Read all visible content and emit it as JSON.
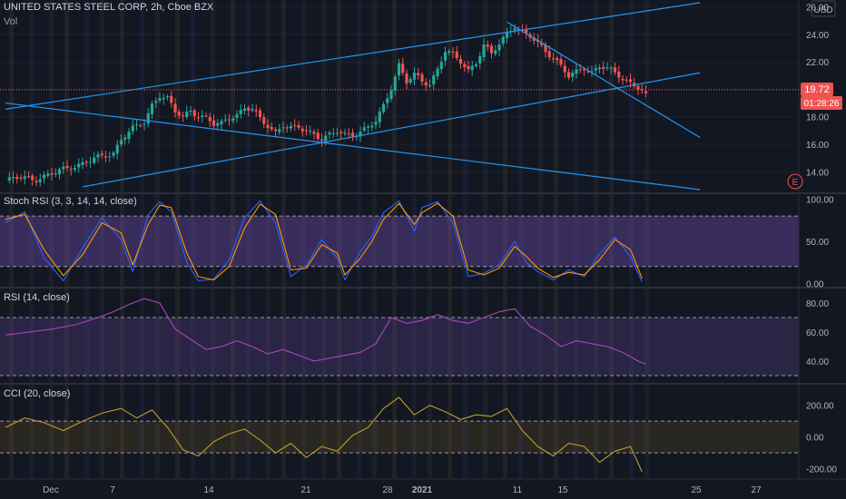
{
  "header": {
    "title": "UNITED STATES STEEL CORP, 2h, Cboe BZX",
    "volume_label": "Vol"
  },
  "price_axis": {
    "currency": "USD",
    "ticks": [
      "26.00",
      "24.00",
      "22.00",
      "20.00",
      "18.00",
      "16.00",
      "14.00"
    ],
    "last_price": "19.72",
    "countdown": "01:28:26",
    "event_badge": "E"
  },
  "x_axis": {
    "ticks": [
      "Dec",
      "7",
      "14",
      "21",
      "28",
      "2021",
      "11",
      "15",
      "25",
      "27"
    ]
  },
  "colors": {
    "background": "#131722",
    "up": "#26a69a",
    "down": "#ef5350",
    "trendline": "#2196f3",
    "stoch_k": "#2962ff",
    "stoch_d": "#ff9800",
    "band_fill": "#7e57c2",
    "cci_line": "#c49a2c",
    "price_label_bg": "#ef5350"
  },
  "chart_data": [
    {
      "type": "candlestick",
      "title": "UNITED STATES STEEL CORP, 2h, Cboe BZX",
      "unit": "USD",
      "y_ticks": [
        14,
        16,
        18,
        20,
        22,
        24,
        26
      ],
      "ylim": [
        12.5,
        26.5
      ],
      "x_ticks": [
        "Dec",
        "7",
        "14",
        "21",
        "28",
        "2021",
        "11",
        "15",
        "25",
        "27"
      ],
      "last_price": 19.72,
      "close_path": [
        [
          0,
          13.3
        ],
        [
          4,
          13.6
        ],
        [
          8,
          13.5
        ],
        [
          12,
          13.8
        ],
        [
          16,
          14.3
        ],
        [
          20,
          14.6
        ],
        [
          24,
          15.0
        ],
        [
          28,
          15.4
        ],
        [
          30,
          16.4
        ],
        [
          33,
          17.1
        ],
        [
          36,
          17.6
        ],
        [
          38,
          18.9
        ],
        [
          40,
          19.6
        ],
        [
          42,
          19.3
        ],
        [
          44,
          18.3
        ],
        [
          46,
          18.0
        ],
        [
          48,
          18.5
        ],
        [
          50,
          18.1
        ],
        [
          52,
          17.9
        ],
        [
          54,
          17.4
        ],
        [
          56,
          17.5
        ],
        [
          58,
          18.0
        ],
        [
          60,
          18.2
        ],
        [
          62,
          18.6
        ],
        [
          64,
          18.5
        ],
        [
          66,
          17.8
        ],
        [
          68,
          17.4
        ],
        [
          70,
          16.9
        ],
        [
          72,
          17.4
        ],
        [
          74,
          17.1
        ],
        [
          76,
          17.2
        ],
        [
          78,
          17.0
        ],
        [
          80,
          16.8
        ],
        [
          82,
          16.4
        ],
        [
          84,
          16.6
        ],
        [
          86,
          16.9
        ],
        [
          88,
          16.7
        ],
        [
          90,
          16.8
        ],
        [
          92,
          16.9
        ],
        [
          94,
          17.2
        ],
        [
          96,
          17.6
        ],
        [
          98,
          18.8
        ],
        [
          100,
          20.2
        ],
        [
          102,
          21.8
        ],
        [
          104,
          20.5
        ],
        [
          106,
          21.0
        ],
        [
          108,
          20.6
        ],
        [
          110,
          20.4
        ],
        [
          112,
          21.5
        ],
        [
          114,
          22.8
        ],
        [
          116,
          22.4
        ],
        [
          118,
          22.0
        ],
        [
          120,
          21.4
        ],
        [
          122,
          22.0
        ],
        [
          124,
          23.2
        ],
        [
          126,
          22.5
        ],
        [
          128,
          23.3
        ],
        [
          130,
          24.1
        ],
        [
          132,
          24.7
        ],
        [
          134,
          24.1
        ],
        [
          136,
          23.8
        ],
        [
          138,
          23.3
        ],
        [
          140,
          22.8
        ],
        [
          142,
          22.4
        ],
        [
          144,
          21.7
        ],
        [
          146,
          20.9
        ],
        [
          148,
          21.2
        ],
        [
          150,
          21.6
        ],
        [
          152,
          21.3
        ],
        [
          154,
          21.7
        ],
        [
          156,
          21.5
        ],
        [
          158,
          21.1
        ],
        [
          160,
          20.8
        ],
        [
          162,
          20.5
        ],
        [
          164,
          20.2
        ],
        [
          166,
          19.72
        ]
      ],
      "trendlines": [
        {
          "name": "upper-channel",
          "from": [
            0,
            18.55
          ],
          "to": [
            180,
            26.3
          ]
        },
        {
          "name": "lower-channel",
          "from": [
            20,
            12.9
          ],
          "to": [
            180,
            21.2
          ]
        },
        {
          "name": "falling-support",
          "from": [
            0,
            19.0
          ],
          "to": [
            180,
            12.7
          ]
        },
        {
          "name": "peak-resistance",
          "from": [
            130,
            24.9
          ],
          "to": [
            180,
            16.5
          ]
        }
      ]
    },
    {
      "type": "line",
      "title": "Stoch RSI (3, 3, 14, 14, close)",
      "y_ticks": [
        0,
        50,
        100
      ],
      "ylim": [
        -4,
        106
      ],
      "bands": [
        20,
        80
      ],
      "series": [
        {
          "name": "K",
          "values": [
            [
              0,
              72
            ],
            [
              5,
              85
            ],
            [
              10,
              30
            ],
            [
              15,
              3
            ],
            [
              20,
              42
            ],
            [
              25,
              78
            ],
            [
              30,
              52
            ],
            [
              33,
              14
            ],
            [
              37,
              82
            ],
            [
              40,
              97
            ],
            [
              43,
              85
            ],
            [
              47,
              25
            ],
            [
              50,
              3
            ],
            [
              54,
              5
            ],
            [
              58,
              28
            ],
            [
              62,
              78
            ],
            [
              66,
              98
            ],
            [
              70,
              72
            ],
            [
              74,
              8
            ],
            [
              78,
              22
            ],
            [
              82,
              52
            ],
            [
              86,
              30
            ],
            [
              88,
              4
            ],
            [
              92,
              38
            ],
            [
              95,
              56
            ],
            [
              98,
              84
            ],
            [
              102,
              98
            ],
            [
              106,
              62
            ],
            [
              108,
              90
            ],
            [
              112,
              97
            ],
            [
              116,
              72
            ],
            [
              120,
              8
            ],
            [
              124,
              12
            ],
            [
              128,
              22
            ],
            [
              132,
              50
            ],
            [
              135,
              25
            ],
            [
              138,
              14
            ],
            [
              142,
              4
            ],
            [
              146,
              16
            ],
            [
              150,
              8
            ],
            [
              154,
              35
            ],
            [
              158,
              55
            ],
            [
              162,
              32
            ],
            [
              165,
              2
            ]
          ]
        },
        {
          "name": "D",
          "values": [
            [
              0,
              76
            ],
            [
              5,
              82
            ],
            [
              10,
              40
            ],
            [
              15,
              9
            ],
            [
              20,
              34
            ],
            [
              25,
              72
            ],
            [
              30,
              60
            ],
            [
              33,
              22
            ],
            [
              37,
              70
            ],
            [
              40,
              93
            ],
            [
              43,
              90
            ],
            [
              47,
              36
            ],
            [
              50,
              8
            ],
            [
              54,
              4
            ],
            [
              58,
              20
            ],
            [
              62,
              66
            ],
            [
              66,
              94
            ],
            [
              70,
              82
            ],
            [
              74,
              16
            ],
            [
              78,
              18
            ],
            [
              82,
              46
            ],
            [
              86,
              36
            ],
            [
              88,
              10
            ],
            [
              92,
              30
            ],
            [
              95,
              50
            ],
            [
              98,
              76
            ],
            [
              102,
              95
            ],
            [
              106,
              70
            ],
            [
              108,
              84
            ],
            [
              112,
              95
            ],
            [
              116,
              80
            ],
            [
              120,
              16
            ],
            [
              124,
              10
            ],
            [
              128,
              18
            ],
            [
              132,
              44
            ],
            [
              135,
              32
            ],
            [
              138,
              18
            ],
            [
              142,
              7
            ],
            [
              146,
              13
            ],
            [
              150,
              10
            ],
            [
              154,
              28
            ],
            [
              158,
              52
            ],
            [
              162,
              40
            ],
            [
              165,
              6
            ]
          ]
        }
      ]
    },
    {
      "type": "line",
      "title": "RSI (14, close)",
      "y_ticks": [
        40,
        60,
        80
      ],
      "ylim": [
        25,
        90
      ],
      "bands": [
        30,
        70
      ],
      "series": [
        {
          "name": "RSI",
          "values": [
            [
              0,
              58
            ],
            [
              6,
              60
            ],
            [
              12,
              62
            ],
            [
              18,
              65
            ],
            [
              24,
              70
            ],
            [
              28,
              74
            ],
            [
              32,
              79
            ],
            [
              36,
              83
            ],
            [
              40,
              80
            ],
            [
              44,
              62
            ],
            [
              48,
              55
            ],
            [
              52,
              48
            ],
            [
              56,
              50
            ],
            [
              60,
              54
            ],
            [
              64,
              50
            ],
            [
              68,
              45
            ],
            [
              72,
              48
            ],
            [
              76,
              44
            ],
            [
              80,
              40
            ],
            [
              84,
              42
            ],
            [
              88,
              44
            ],
            [
              92,
              46
            ],
            [
              96,
              52
            ],
            [
              100,
              70
            ],
            [
              104,
              66
            ],
            [
              108,
              68
            ],
            [
              112,
              72
            ],
            [
              116,
              68
            ],
            [
              120,
              66
            ],
            [
              124,
              70
            ],
            [
              128,
              74
            ],
            [
              132,
              76
            ],
            [
              136,
              64
            ],
            [
              140,
              58
            ],
            [
              144,
              50
            ],
            [
              148,
              54
            ],
            [
              152,
              52
            ],
            [
              156,
              50
            ],
            [
              160,
              46
            ],
            [
              164,
              40
            ],
            [
              166,
              38
            ]
          ]
        }
      ]
    },
    {
      "type": "line",
      "title": "CCI (20, close)",
      "y_ticks": [
        -200,
        0,
        200
      ],
      "ylim": [
        -260,
        330
      ],
      "bands": [
        -100,
        100
      ],
      "series": [
        {
          "name": "CCI",
          "values": [
            [
              0,
              60
            ],
            [
              5,
              120
            ],
            [
              10,
              90
            ],
            [
              15,
              40
            ],
            [
              20,
              100
            ],
            [
              25,
              150
            ],
            [
              30,
              180
            ],
            [
              34,
              120
            ],
            [
              38,
              170
            ],
            [
              42,
              60
            ],
            [
              46,
              -80
            ],
            [
              50,
              -120
            ],
            [
              54,
              -30
            ],
            [
              58,
              20
            ],
            [
              62,
              50
            ],
            [
              66,
              -20
            ],
            [
              70,
              -100
            ],
            [
              74,
              -40
            ],
            [
              78,
              -130
            ],
            [
              82,
              -60
            ],
            [
              86,
              -90
            ],
            [
              90,
              10
            ],
            [
              94,
              60
            ],
            [
              98,
              180
            ],
            [
              102,
              250
            ],
            [
              106,
              140
            ],
            [
              110,
              200
            ],
            [
              114,
              160
            ],
            [
              118,
              110
            ],
            [
              122,
              140
            ],
            [
              126,
              130
            ],
            [
              130,
              180
            ],
            [
              134,
              40
            ],
            [
              138,
              -60
            ],
            [
              142,
              -120
            ],
            [
              146,
              -40
            ],
            [
              150,
              -60
            ],
            [
              154,
              -160
            ],
            [
              158,
              -90
            ],
            [
              162,
              -60
            ],
            [
              165,
              -220
            ]
          ]
        }
      ]
    }
  ]
}
